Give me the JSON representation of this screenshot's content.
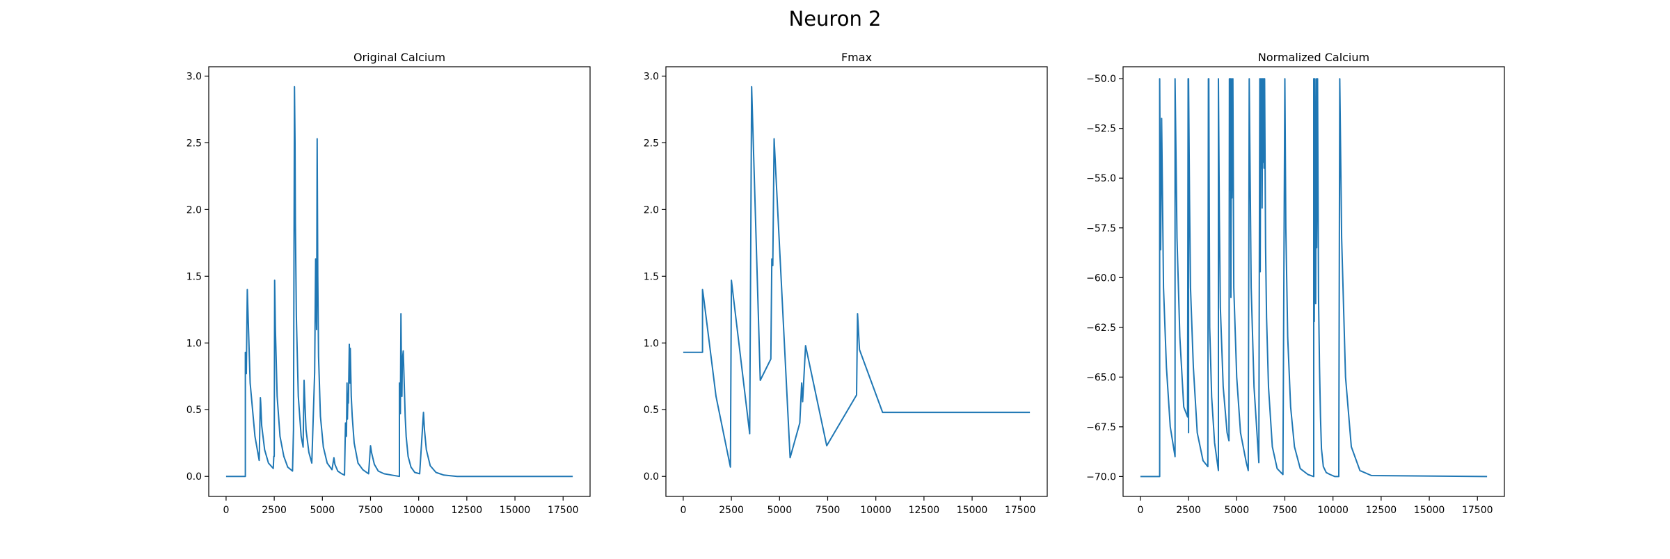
{
  "figure": {
    "suptitle": "Neuron 2",
    "line_color": "#1f77b4"
  },
  "chart_data": [
    {
      "type": "line",
      "title": "Original Calcium",
      "xlim": [
        -900,
        18900
      ],
      "ylim": [
        -0.15,
        3.07
      ],
      "xticks": [
        0,
        2500,
        5000,
        7500,
        10000,
        12500,
        15000,
        17500
      ],
      "xtick_labels": [
        "0",
        "2500",
        "5000",
        "7500",
        "10000",
        "12500",
        "15000",
        "17500"
      ],
      "yticks": [
        0.0,
        0.5,
        1.0,
        1.5,
        2.0,
        2.5,
        3.0
      ],
      "ytick_labels": [
        "0.0",
        "0.5",
        "1.0",
        "1.5",
        "2.0",
        "2.5",
        "3.0"
      ],
      "series": [
        {
          "x": [
            0,
            1000,
            1000,
            1050,
            1100,
            1250,
            1500,
            1720,
            1780,
            1800,
            1850,
            2000,
            2200,
            2450,
            2480,
            2500,
            2520,
            2560,
            2650,
            2800,
            3000,
            3200,
            3450,
            3500,
            3550,
            3580,
            3600,
            3650,
            3750,
            3900,
            4000,
            4050,
            4080,
            4150,
            4300,
            4450,
            4600,
            4650,
            4700,
            4730,
            4760,
            4800,
            4900,
            5050,
            5250,
            5500,
            5600,
            5650,
            5800,
            6000,
            6150,
            6200,
            6250,
            6280,
            6300,
            6330,
            6350,
            6400,
            6430,
            6450,
            6500,
            6550,
            6650,
            6850,
            7100,
            7400,
            7500,
            7550,
            7700,
            7900,
            8200,
            8600,
            9000,
            9000,
            9050,
            9080,
            9100,
            9130,
            9150,
            9200,
            9250,
            9300,
            9350,
            9450,
            9600,
            9800,
            10050,
            10250,
            10300,
            10400,
            10600,
            10900,
            11300,
            12000,
            18000
          ],
          "y": [
            0.0,
            0.0,
            0.93,
            0.77,
            1.4,
            0.7,
            0.3,
            0.12,
            0.59,
            0.55,
            0.38,
            0.2,
            0.1,
            0.06,
            0.15,
            0.15,
            1.47,
            1.1,
            0.6,
            0.3,
            0.15,
            0.07,
            0.04,
            0.35,
            2.92,
            2.5,
            1.9,
            1.2,
            0.6,
            0.3,
            0.22,
            0.72,
            0.6,
            0.35,
            0.18,
            0.1,
            0.78,
            1.63,
            1.1,
            2.53,
            1.5,
            0.9,
            0.45,
            0.22,
            0.1,
            0.05,
            0.14,
            0.09,
            0.04,
            0.02,
            0.01,
            0.4,
            0.3,
            0.7,
            0.43,
            0.62,
            0.55,
            0.99,
            0.7,
            0.96,
            0.6,
            0.45,
            0.25,
            0.1,
            0.05,
            0.02,
            0.23,
            0.18,
            0.09,
            0.04,
            0.02,
            0.01,
            0.0,
            0.7,
            0.47,
            1.22,
            0.9,
            0.6,
            0.87,
            0.94,
            0.7,
            0.45,
            0.3,
            0.15,
            0.07,
            0.03,
            0.02,
            0.48,
            0.35,
            0.2,
            0.08,
            0.03,
            0.01,
            0.0,
            0.0
          ]
        }
      ]
    },
    {
      "type": "line",
      "title": "Fmax",
      "xlim": [
        -900,
        18900
      ],
      "ylim": [
        -0.15,
        3.07
      ],
      "xticks": [
        0,
        2500,
        5000,
        7500,
        10000,
        12500,
        15000,
        17500
      ],
      "xtick_labels": [
        "0",
        "2500",
        "5000",
        "7500",
        "10000",
        "12500",
        "15000",
        "17500"
      ],
      "yticks": [
        0.0,
        0.5,
        1.0,
        1.5,
        2.0,
        2.5,
        3.0
      ],
      "ytick_labels": [
        "0.0",
        "0.5",
        "1.0",
        "1.5",
        "2.0",
        "2.5",
        "3.0"
      ],
      "series": [
        {
          "x": [
            0,
            1000,
            1000,
            1050,
            1700,
            2450,
            2500,
            3450,
            3550,
            4000,
            4550,
            4600,
            4650,
            4720,
            5550,
            6050,
            6150,
            6200,
            6350,
            7450,
            9000,
            9050,
            9150,
            10350,
            18000
          ],
          "y": [
            0.93,
            0.93,
            1.4,
            1.35,
            0.6,
            0.07,
            1.47,
            0.32,
            2.92,
            0.72,
            0.88,
            1.63,
            1.58,
            2.53,
            0.14,
            0.4,
            0.7,
            0.56,
            0.98,
            0.23,
            0.61,
            1.22,
            0.95,
            0.48,
            0.48
          ]
        }
      ]
    },
    {
      "type": "line",
      "title": "Normalized Calcium",
      "xlim": [
        -900,
        18900
      ],
      "ylim": [
        -71.0,
        -49.4
      ],
      "xticks": [
        0,
        2500,
        5000,
        7500,
        10000,
        12500,
        15000,
        17500
      ],
      "xtick_labels": [
        "0",
        "2500",
        "5000",
        "7500",
        "10000",
        "12500",
        "15000",
        "17500"
      ],
      "yticks": [
        -70.0,
        -67.5,
        -65.0,
        -62.5,
        -60.0,
        -57.5,
        -55.0,
        -52.5,
        -50.0
      ],
      "ytick_labels": [
        "−70.0",
        "−67.5",
        "−65.0",
        "−62.5",
        "−60.0",
        "−57.5",
        "−55.0",
        "−52.5",
        "−50.0"
      ],
      "series": [
        {
          "x": [
            0,
            1000,
            1000,
            1050,
            1100,
            1200,
            1350,
            1550,
            1800,
            1800,
            1900,
            2050,
            2250,
            2450,
            2480,
            2500,
            2500,
            2550,
            2600,
            2750,
            2950,
            3250,
            3500,
            3530,
            3550,
            3600,
            3700,
            3850,
            4050,
            4050,
            4100,
            4150,
            4300,
            4500,
            4600,
            4620,
            4650,
            4680,
            4700,
            4730,
            4750,
            4800,
            4850,
            5000,
            5200,
            5500,
            5600,
            5650,
            5750,
            5900,
            6100,
            6150,
            6200,
            6220,
            6250,
            6270,
            6300,
            6320,
            6350,
            6370,
            6400,
            6420,
            6450,
            6500,
            6550,
            6650,
            6850,
            7100,
            7400,
            7500,
            7550,
            7650,
            7800,
            8000,
            8300,
            8700,
            9000,
            9000,
            9030,
            9050,
            9080,
            9100,
            9130,
            9150,
            9200,
            9250,
            9300,
            9350,
            9400,
            9500,
            9650,
            9850,
            10100,
            10300,
            10350,
            10450,
            10650,
            10950,
            11400,
            12000,
            18000
          ],
          "y": [
            -70.0,
            -70.0,
            -50.0,
            -58.6,
            -52.0,
            -60.5,
            -64.5,
            -67.5,
            -69.0,
            -50.0,
            -58.0,
            -63.0,
            -66.5,
            -67.0,
            -50.0,
            -67.8,
            -50.0,
            -56.0,
            -60.5,
            -64.5,
            -67.8,
            -69.2,
            -69.5,
            -50.0,
            -50.0,
            -62.5,
            -66.0,
            -68.3,
            -69.7,
            -50.0,
            -57.0,
            -61.5,
            -65.5,
            -67.8,
            -68.2,
            -50.0,
            -55.6,
            -50.0,
            -61.0,
            -50.0,
            -56.0,
            -50.0,
            -60.5,
            -65.0,
            -67.8,
            -69.3,
            -69.7,
            -50.0,
            -60.5,
            -65.5,
            -68.5,
            -69.3,
            -50.0,
            -59.7,
            -50.0,
            -54.5,
            -50.0,
            -56.5,
            -50.0,
            -54.2,
            -50.0,
            -54.5,
            -50.0,
            -58.5,
            -62.0,
            -65.5,
            -68.5,
            -69.6,
            -69.9,
            -50.0,
            -57.5,
            -63.0,
            -66.5,
            -68.5,
            -69.6,
            -69.9,
            -70.0,
            -50.0,
            -62.2,
            -50.0,
            -58.0,
            -61.3,
            -50.0,
            -58.5,
            -50.0,
            -61.0,
            -64.5,
            -67.0,
            -68.6,
            -69.5,
            -69.8,
            -69.9,
            -70.0,
            -70.0,
            -50.0,
            -58.0,
            -65.0,
            -68.5,
            -69.7,
            -69.95,
            -70.0
          ]
        }
      ]
    }
  ]
}
